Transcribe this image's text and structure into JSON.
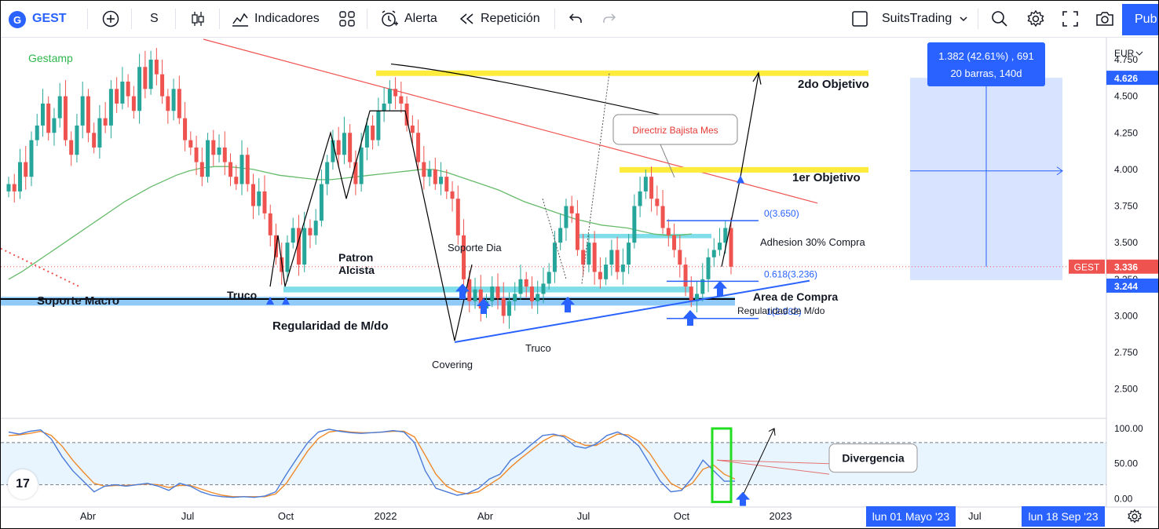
{
  "toolbar": {
    "symbol": "GEST",
    "interval": "S",
    "indicators_label": "Indicadores",
    "alert_label": "Alerta",
    "replay_label": "Repetición",
    "layout_name": "SuitsTrading",
    "publish_label": "Pub"
  },
  "colors": {
    "up": "#26a69a",
    "down": "#ef5350",
    "accent": "#2962ff",
    "ma": "#66bb6a",
    "objective": "#ffeb3b",
    "zone": "#80deea",
    "k_line": "#4a7bd8",
    "d_line": "#ef8a2b"
  },
  "chart_data": [
    {
      "type": "candlestick",
      "title": "Gestamp",
      "currency": "EUR",
      "y_ticks": [
        2.5,
        2.75,
        3.0,
        3.25,
        3.5,
        3.75,
        4.0,
        4.25,
        4.5,
        4.75
      ],
      "ylim": [
        2.3,
        4.9
      ],
      "x_ticks": [
        "Abr",
        "Jul",
        "Oct",
        "2022",
        "Abr",
        "Jul",
        "Oct",
        "2023"
      ],
      "last_price": {
        "symbol": "GEST",
        "value": 3.336
      },
      "price_labels": [
        4.626,
        3.244
      ],
      "closes": [
        3.9,
        3.85,
        4.05,
        3.95,
        4.2,
        4.3,
        4.45,
        4.25,
        4.35,
        4.5,
        4.2,
        4.1,
        4.3,
        4.5,
        4.25,
        4.15,
        4.35,
        4.3,
        4.55,
        4.45,
        4.6,
        4.5,
        4.4,
        4.7,
        4.55,
        4.75,
        4.65,
        4.5,
        4.4,
        4.55,
        4.35,
        4.2,
        4.15,
        4.05,
        3.95,
        4.2,
        4.1,
        4.15,
        4.05,
        3.95,
        3.9,
        4.1,
        3.9,
        3.75,
        3.85,
        3.7,
        3.55,
        3.4,
        3.3,
        3.5,
        3.6,
        3.35,
        3.6,
        3.55,
        3.65,
        3.9,
        4.05,
        4.2,
        4.1,
        4.25,
        4.05,
        3.9,
        4.15,
        4.3,
        4.2,
        4.4,
        4.45,
        4.55,
        4.5,
        4.45,
        4.3,
        4.25,
        4.05,
        3.95,
        4.0,
        3.9,
        3.95,
        3.85,
        3.8,
        3.55,
        3.25,
        3.1,
        3.18,
        3.05,
        3.1,
        3.2,
        3.12,
        3.0,
        3.1,
        3.15,
        3.25,
        3.2,
        3.1,
        3.15,
        3.22,
        3.3,
        3.5,
        3.6,
        3.75,
        3.7,
        3.45,
        3.35,
        3.5,
        3.3,
        3.25,
        3.35,
        3.45,
        3.3,
        3.35,
        3.5,
        3.75,
        3.85,
        3.95,
        3.8,
        3.75,
        3.6,
        3.55,
        3.45,
        3.35,
        3.2,
        3.1,
        3.15,
        3.25,
        3.4,
        3.45,
        3.5,
        3.6,
        3.336
      ],
      "moving_average": [
        3.25,
        3.3,
        3.36,
        3.42,
        3.48,
        3.54,
        3.6,
        3.66,
        3.72,
        3.78,
        3.83,
        3.88,
        3.92,
        3.96,
        3.99,
        4.01,
        4.02,
        4.02,
        4.01,
        4.0,
        3.98,
        3.96,
        3.95,
        3.94,
        3.93,
        3.93,
        3.94,
        3.95,
        3.96,
        3.97,
        3.98,
        3.99,
        4.0,
        4.0,
        3.98,
        3.95,
        3.92,
        3.89,
        3.86,
        3.82,
        3.78,
        3.75,
        3.72,
        3.69,
        3.66,
        3.64,
        3.62,
        3.61,
        3.6,
        3.58,
        3.56,
        3.55,
        3.55,
        3.56
      ],
      "annotations": {
        "objective_2": {
          "label": "2do Objetivo",
          "price": 4.66
        },
        "objective_1": {
          "label": "1er Objetivo",
          "price": 4.0
        },
        "support_macro": {
          "label": "Soporte Macro",
          "price": 3.11
        },
        "regularity_label": "Regularidad de M/do",
        "regularity_label_2": "Regularidad de M/do",
        "trick_label_1": "Truco",
        "trick_label_2": "Truco",
        "pattern_label_1": "Patron",
        "pattern_label_2": "Alcista",
        "support_day_label": "Soporte Dia",
        "covering_label": "Covering",
        "buy_area_label": "Area de Compra",
        "adhesion_label": "Adhesion 30% Compra",
        "trend_callout": "Directriz Bajista Mes",
        "fib_levels": [
          {
            "label": "0(3.650)",
            "price": 3.65
          },
          {
            "label": "0.618(3.236)",
            "price": 3.236
          },
          {
            "label": "1(2.982)",
            "price": 2.982
          }
        ],
        "measure_tooltip": {
          "line1": "1.382 (42.61%) , 691",
          "line2": "20 barras, 140d"
        }
      }
    },
    {
      "type": "line",
      "y_ticks": [
        0,
        50,
        100
      ],
      "y_tick_labels": [
        "0.00",
        "50.00",
        "100.00"
      ],
      "ylim": [
        -5,
        110
      ],
      "bands": [
        20,
        80
      ],
      "divergence_label": "Divergencia",
      "k": [
        95,
        92,
        96,
        98,
        85,
        60,
        40,
        25,
        10,
        18,
        20,
        18,
        20,
        22,
        18,
        12,
        22,
        18,
        10,
        5,
        3,
        2,
        3,
        2,
        4,
        10,
        35,
        58,
        80,
        95,
        99,
        96,
        94,
        93,
        94,
        95,
        97,
        95,
        80,
        40,
        15,
        10,
        5,
        8,
        15,
        28,
        35,
        55,
        65,
        78,
        90,
        92,
        88,
        75,
        72,
        78,
        90,
        95,
        88,
        75,
        50,
        25,
        10,
        12,
        30,
        55,
        40,
        25,
        25
      ],
      "d": [
        90,
        91,
        93,
        96,
        90,
        75,
        55,
        38,
        22,
        18,
        19,
        19,
        20,
        21,
        20,
        16,
        19,
        19,
        14,
        9,
        5,
        3,
        3,
        3,
        3,
        7,
        22,
        45,
        68,
        86,
        95,
        97,
        95,
        94,
        94,
        95,
        96,
        96,
        88,
        62,
        35,
        18,
        10,
        7,
        10,
        20,
        30,
        45,
        58,
        70,
        82,
        90,
        90,
        82,
        76,
        76,
        84,
        92,
        91,
        82,
        65,
        42,
        22,
        14,
        22,
        42,
        48,
        35,
        28
      ]
    }
  ],
  "bottom_axis": {
    "date_badge_1": "lun 01 Mayo '23",
    "mid_label": "Jul",
    "date_badge_2": "lun 18 Sep '23"
  }
}
